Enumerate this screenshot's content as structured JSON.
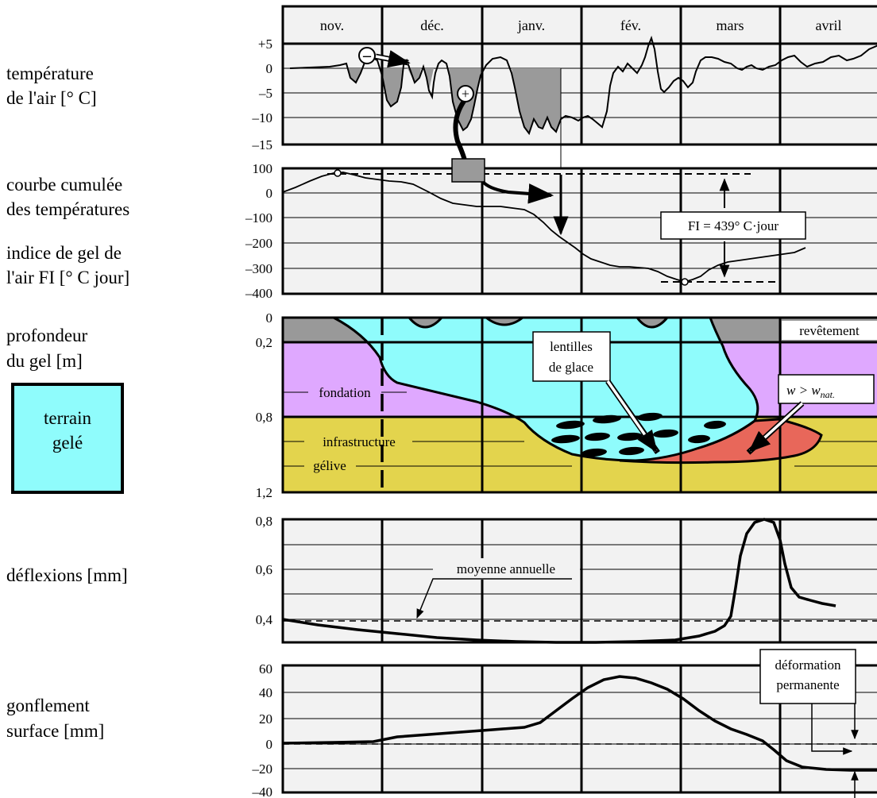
{
  "months": [
    "nov.",
    "déc.",
    "janv.",
    "fév.",
    "mars",
    "avril"
  ],
  "colors": {
    "panel_bg": "#f2f2f2",
    "frozen": "#8ffcfc",
    "pavement": "#999999",
    "foundation": "#dfa8ff",
    "subgrade": "#e3d44d",
    "wet_zone": "#e8675a",
    "cold_fill": "#9a9a9a"
  },
  "labels": {
    "air_temp_1": "température",
    "air_temp_2": "de l'air  [° C]",
    "cumul_1": "courbe cumulée",
    "cumul_2": "des températures",
    "fi_1": "indice de gel de",
    "fi_2": "l'air FI  [° C jour]",
    "depth_1": "profondeur",
    "depth_2": "du gel  [m]",
    "legend_1": "terrain",
    "legend_2": "gelé",
    "deflection": "déflexions  [mm]",
    "heave_1": "gonflement",
    "heave_2": "surface [mm]"
  },
  "panels": {
    "temp": {
      "ticks": [
        "+5",
        "0",
        "–5",
        "–10",
        "–15"
      ],
      "values": [
        5,
        0,
        -5,
        -10,
        -15
      ]
    },
    "cumul": {
      "ticks": [
        "100",
        "0",
        "–100",
        "–200",
        "–300",
        "–400"
      ],
      "values": [
        100,
        0,
        -100,
        -200,
        -300,
        -400
      ],
      "fi_label": "FI = 439° C·jour"
    },
    "depth": {
      "ticks": [
        "0",
        "0,2",
        "0,8",
        "1,2"
      ],
      "values": [
        0,
        0.2,
        0.8,
        1.2
      ],
      "layers": {
        "pavement": "revêtement",
        "foundation": "fondation",
        "subgrade_1": "infrastructure",
        "subgrade_2": "gélive"
      },
      "ice_1": "lentilles",
      "ice_2": "de glace",
      "moisture_w": "w",
      "moisture_gt": " > ",
      "moisture_wnat": "w",
      "moisture_sub": "nat."
    },
    "deflection": {
      "ticks": [
        "0,8",
        "0,6",
        "0,4"
      ],
      "values": [
        0.8,
        0.6,
        0.4
      ],
      "mean_label": "moyenne annuelle"
    },
    "heave": {
      "ticks": [
        "60",
        "40",
        "20",
        "0",
        "–20",
        "–40"
      ],
      "values": [
        60,
        40,
        20,
        0,
        -20,
        -40
      ],
      "perm_1": "déformation",
      "perm_2": "permanente"
    }
  },
  "signs": {
    "minus": "–",
    "plus": "+"
  }
}
